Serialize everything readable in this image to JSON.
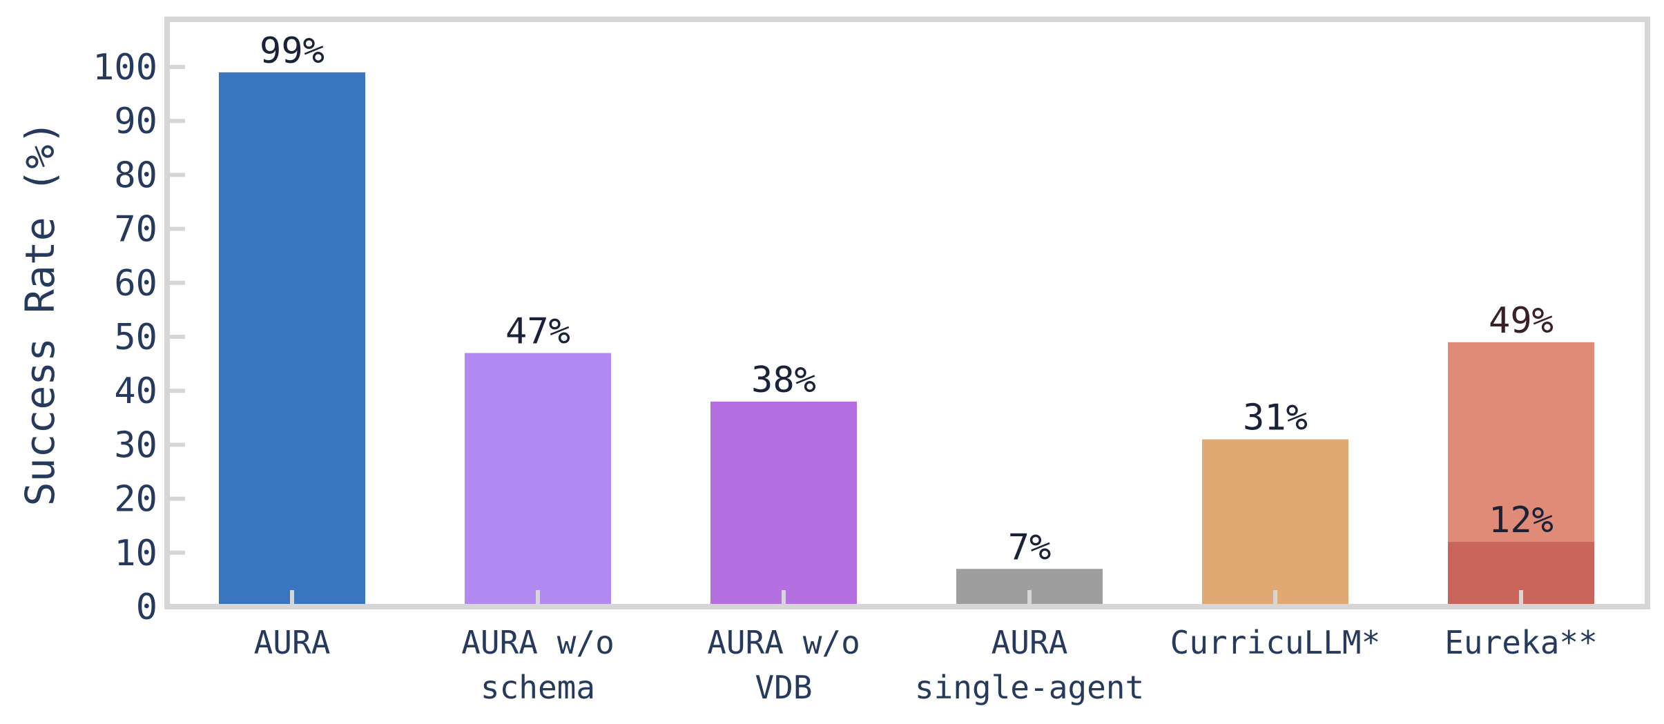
{
  "chart_data": {
    "type": "bar",
    "title": "",
    "xlabel": "",
    "ylabel": "Success Rate (%)",
    "ylim": [
      0,
      100
    ],
    "yticks": [
      0,
      10,
      20,
      30,
      40,
      50,
      60,
      70,
      80,
      90,
      100
    ],
    "grid": false,
    "categories": [
      [
        "AURA"
      ],
      [
        "AURA w/o",
        "schema"
      ],
      [
        "AURA w/o",
        "VDB"
      ],
      [
        "AURA",
        "single-agent"
      ],
      [
        "CurricuLLM*"
      ],
      [
        "Eureka**"
      ]
    ],
    "values": [
      99,
      47,
      38,
      7,
      31,
      49
    ],
    "value_labels": [
      "99%",
      "47%",
      "38%",
      "7%",
      "31%",
      "49%"
    ],
    "colors": [
      "#3a76c0",
      "#b08af0",
      "#b46fe0",
      "#9e9e9e",
      "#e0a973",
      "#e08b78"
    ],
    "label_colors": [
      "#1a2238",
      "#1a2238",
      "#1a2238",
      "#1a2238",
      "#1a2238",
      "#3a2028"
    ],
    "inner_segments": [
      {
        "category_index": 5,
        "value": 12,
        "label": "12%",
        "color": "#c8645a"
      }
    ]
  }
}
